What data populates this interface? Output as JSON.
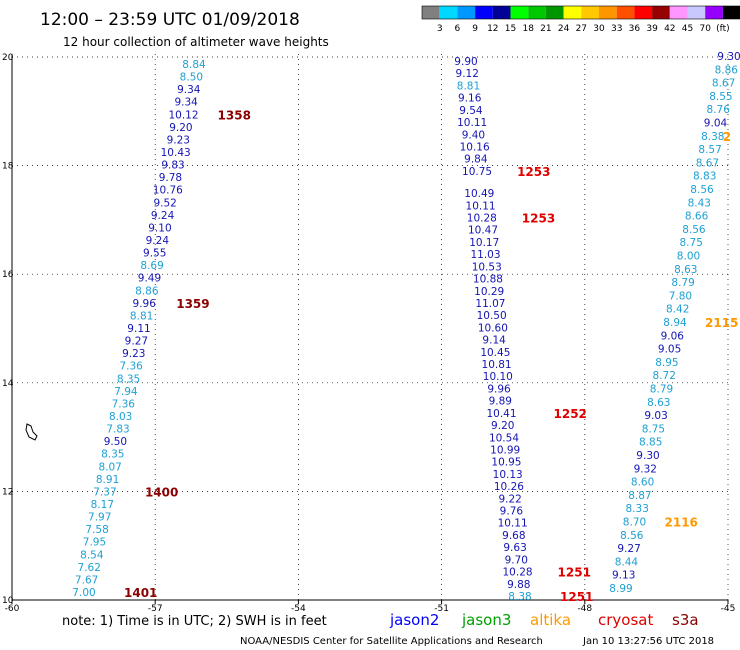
{
  "header": {
    "title": "12:00 – 23:59 UTC 01/09/2018",
    "subtitle": "12 hour collection of altimeter wave heights"
  },
  "colorbar": {
    "labels": [
      "3",
      "6",
      "9",
      "12",
      "15",
      "18",
      "21",
      "24",
      "27",
      "30",
      "33",
      "36",
      "39",
      "42",
      "45",
      "70",
      "(ft)"
    ],
    "colors": [
      "#808080",
      "#00d8ff",
      "#0098ff",
      "#0000ff",
      "#000096",
      "#00ff00",
      "#00c800",
      "#009600",
      "#ffff00",
      "#ffc800",
      "#ff9600",
      "#ff5000",
      "#ff0000",
      "#960000",
      "#ff96ff",
      "#c8c8ff",
      "#9600ff",
      "#000000"
    ]
  },
  "chart_data": {
    "type": "scatter",
    "xlabel": "",
    "ylabel": "",
    "xlim": [
      -60,
      -45
    ],
    "ylim": [
      10,
      20
    ],
    "x_ticks": [
      "-60",
      "-57",
      "-54",
      "-51",
      "-48",
      "-45"
    ],
    "y_ticks": [
      "20",
      "18",
      "16",
      "14",
      "12",
      "10"
    ],
    "grid": true,
    "tracks": [
      {
        "name": "track-west",
        "values": [
          "8.84",
          "8.50",
          "9.34",
          "9.34",
          "10.12",
          "9.20",
          "9.23",
          "10.43",
          "9.83",
          "9.78",
          "10.76",
          "9.52",
          "9.24",
          "9.10",
          "9.24",
          "9.55",
          "8.69",
          "9.49",
          "8.86",
          "9.96",
          "8.81",
          "9.11",
          "9.27",
          "9.23",
          "7.36",
          "8.35",
          "7.94",
          "7.36",
          "8.03",
          "7.83",
          "9.50",
          "8.35",
          "8.07",
          "8.91",
          "7.37",
          "8.17",
          "7.97",
          "7.58",
          "7.95",
          "8.54",
          "7.62",
          "7.67",
          "7.00"
        ],
        "times": [
          {
            "label": "1358",
            "index": 4
          },
          {
            "label": "1359",
            "index": 19
          },
          {
            "label": "1400",
            "index": 34
          },
          {
            "label": "1401",
            "index": 42
          }
        ],
        "time_color": "#8b0000"
      },
      {
        "name": "track-middle",
        "values": [
          "9.90",
          "9.12",
          "8.81",
          "9.16",
          "9.54",
          "10.11",
          "9.40",
          "10.16",
          "9.84",
          "10.75",
          "10.49",
          "10.11",
          "10.28",
          "10.47",
          "10.17",
          "11.03",
          "10.53",
          "10.88",
          "10.29",
          "11.07",
          "10.50",
          "10.60",
          "9.14",
          "10.45",
          "10.81",
          "10.10",
          "9.96",
          "9.89",
          "10.41",
          "9.20",
          "10.54",
          "10.99",
          "10.95",
          "10.13",
          "10.26",
          "9.22",
          "9.76",
          "10.11",
          "9.68",
          "9.63",
          "9.70",
          "10.28",
          "9.88",
          "8.38"
        ],
        "times": [
          {
            "label": "1253",
            "index": 9
          },
          {
            "label": "1253",
            "index": 12
          },
          {
            "label": "1252",
            "index": 28
          },
          {
            "label": "1251",
            "index": 41
          },
          {
            "label": "1251",
            "index": 43
          }
        ],
        "time_color": "#e00000"
      },
      {
        "name": "track-east",
        "values": [
          "9.30",
          "8.86",
          "8.67",
          "8.55",
          "8.76",
          "9.04",
          "8.38",
          "8.57",
          "8.67",
          "8.83",
          "8.56",
          "8.43",
          "8.66",
          "8.56",
          "8.75",
          "8.00",
          "8.63",
          "8.79",
          "7.80",
          "8.42",
          "8.94",
          "9.06",
          "9.05",
          "8.95",
          "8.72",
          "8.79",
          "8.63",
          "9.03",
          "8.75",
          "8.85",
          "9.30",
          "9.32",
          "8.60",
          "8.87",
          "8.33",
          "8.70",
          "8.56",
          "9.27",
          "8.44",
          "9.13",
          "8.99"
        ],
        "times": [
          {
            "label": "2115",
            "index": 20
          },
          {
            "label": "2116",
            "index": 35
          },
          {
            "label": "2",
            "index": 6
          }
        ],
        "time_color": "#ff9900"
      }
    ]
  },
  "legend": {
    "note": "note:  1) Time is in UTC;  2) SWH is in feet",
    "satellites": [
      {
        "label": "jason2",
        "color": "#0000ff"
      },
      {
        "label": "jason3",
        "color": "#00a000"
      },
      {
        "label": "altika",
        "color": "#ff9900"
      },
      {
        "label": "cryosat",
        "color": "#e00000"
      },
      {
        "label": "s3a",
        "color": "#8b0000"
      }
    ]
  },
  "footer": {
    "credit": "NOAA/NESDIS Center for Satellite Applications and Research",
    "timestamp": "Jan 10 13:27:56 UTC 2018"
  },
  "value_colors": {
    "below_9": "#1ea0d2",
    "nine_plus": "#1414b4"
  }
}
